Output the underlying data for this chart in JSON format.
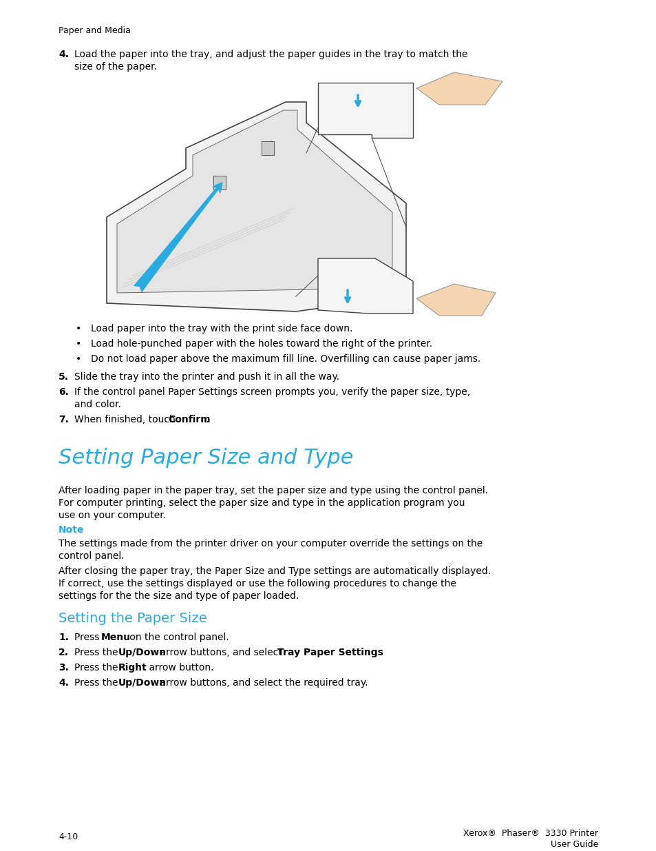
{
  "bg_color": "#ffffff",
  "text_color": "#000000",
  "cyan_color": "#29abe2",
  "header_text": "Paper and Media",
  "bullet1": "Load paper into the tray with the print side face down.",
  "bullet2": "Load hole-punched paper with the holes toward the right of the printer.",
  "bullet3": "Do not load paper above the maximum fill line. Overfilling can cause paper jams.",
  "section_title": "Setting Paper Size and Type",
  "para1_line1": "After loading paper in the paper tray, set the paper size and type using the control panel.",
  "para1_line2": "For computer printing, select the paper size and type in the application program you",
  "para1_line3": "use on your computer.",
  "note_label": "Note",
  "note_line1": "The settings made from the printer driver on your computer override the settings on the",
  "note_line2": "control panel.",
  "para2_line1": "After closing the paper tray, the Paper Size and Type settings are automatically displayed.",
  "para2_line2": "If correct, use the settings displayed or use the following procedures to change the",
  "para2_line3": "settings for the the size and type of paper loaded.",
  "subsection_title": "Setting the Paper Size",
  "footer_left": "4-10",
  "footer_right1": "Xerox®  Phaser®  3330 Printer",
  "footer_right2": "User Guide"
}
